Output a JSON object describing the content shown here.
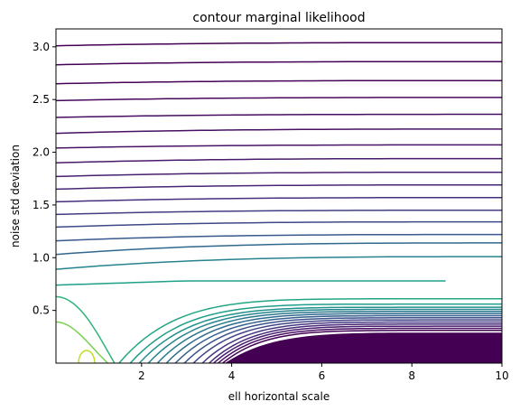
{
  "chart_data": {
    "type": "contour",
    "title": "contour marginal likelihood",
    "xlabel": "ell horizontal scale",
    "ylabel": "noise std deviation",
    "xlim": [
      0.1,
      10
    ],
    "ylim": [
      0.0,
      3.17
    ],
    "x_ticks": [
      {
        "value": 2,
        "label": "2"
      },
      {
        "value": 4,
        "label": "4"
      },
      {
        "value": 6,
        "label": "6"
      },
      {
        "value": 8,
        "label": "8"
      },
      {
        "value": 10,
        "label": "10"
      }
    ],
    "y_ticks": [
      {
        "value": 0.5,
        "label": "0.5"
      },
      {
        "value": 1.0,
        "label": "1.0"
      },
      {
        "value": 1.5,
        "label": "1.5"
      },
      {
        "value": 2.0,
        "label": "2.0"
      },
      {
        "value": 2.5,
        "label": "2.5"
      },
      {
        "value": 3.0,
        "label": "3.0"
      }
    ],
    "colormap": "viridis",
    "grid": false,
    "legend": false,
    "horizontal_contours": [
      {
        "y_left": 3.01,
        "y_right": 3.04,
        "color": "#440154"
      },
      {
        "y_left": 2.83,
        "y_right": 2.86,
        "color": "#440154"
      },
      {
        "y_left": 2.65,
        "y_right": 2.68,
        "color": "#450457"
      },
      {
        "y_left": 2.49,
        "y_right": 2.52,
        "color": "#46085c"
      },
      {
        "y_left": 2.33,
        "y_right": 2.36,
        "color": "#470d60"
      },
      {
        "y_left": 2.18,
        "y_right": 2.22,
        "color": "#471063"
      },
      {
        "y_left": 2.04,
        "y_right": 2.07,
        "color": "#481467"
      },
      {
        "y_left": 1.9,
        "y_right": 1.94,
        "color": "#481a6c"
      },
      {
        "y_left": 1.77,
        "y_right": 1.81,
        "color": "#482071"
      },
      {
        "y_left": 1.65,
        "y_right": 1.69,
        "color": "#472575"
      },
      {
        "y_left": 1.53,
        "y_right": 1.57,
        "color": "#46307e"
      },
      {
        "y_left": 1.41,
        "y_right": 1.45,
        "color": "#433d84"
      },
      {
        "y_left": 1.29,
        "y_right": 1.34,
        "color": "#3e4989"
      },
      {
        "y_left": 1.16,
        "y_right": 1.22,
        "color": "#38598c"
      },
      {
        "y_left": 1.03,
        "y_right": 1.14,
        "color": "#31688e"
      },
      {
        "y_left": 0.89,
        "y_right": 1.01,
        "color": "#26828e"
      }
    ],
    "green_contour": {
      "y_left": 0.74,
      "plateau": 0.78,
      "x_end": 8.75,
      "color": "#1fa187"
    },
    "valley_contours": [
      {
        "x_bottom": 1.5,
        "y_right": 0.61,
        "color": "#22a785"
      },
      {
        "x_bottom": 1.75,
        "y_right": 0.56,
        "color": "#1f9e89"
      },
      {
        "x_bottom": 1.95,
        "y_right": 0.53,
        "color": "#21918c"
      },
      {
        "x_bottom": 2.15,
        "y_right": 0.51,
        "color": "#25848e"
      },
      {
        "x_bottom": 2.35,
        "y_right": 0.49,
        "color": "#2a788e"
      },
      {
        "x_bottom": 2.55,
        "y_right": 0.47,
        "color": "#2f6b8e"
      },
      {
        "x_bottom": 2.75,
        "y_right": 0.45,
        "color": "#355f8d"
      },
      {
        "x_bottom": 2.95,
        "y_right": 0.43,
        "color": "#3b528b"
      },
      {
        "x_bottom": 3.15,
        "y_right": 0.41,
        "color": "#414487"
      },
      {
        "x_bottom": 3.35,
        "y_right": 0.39,
        "color": "#453781"
      },
      {
        "x_bottom": 3.5,
        "y_right": 0.37,
        "color": "#472a7a"
      },
      {
        "x_bottom": 3.6,
        "y_right": 0.35,
        "color": "#481c6e"
      },
      {
        "x_bottom": 3.7,
        "y_right": 0.33,
        "color": "#470f62"
      },
      {
        "x_bottom": 3.8,
        "y_right": 0.31,
        "color": "#440154"
      }
    ],
    "filled_region": {
      "x_start": 3.85,
      "y_top": 0.29,
      "color": "#440154"
    },
    "left_contours": [
      {
        "type": "open",
        "x_max": 0.95,
        "y_top": 0.63,
        "y_bottom_right": 0.0,
        "x_bottom": 1.4,
        "color": "#2fb47c"
      },
      {
        "type": "open",
        "x_max": 0.75,
        "y_top": 0.39,
        "x_bottom": 1.25,
        "color": "#7ad151"
      },
      {
        "type": "dome",
        "x_center": 0.78,
        "half_width": 0.18,
        "height": 0.12,
        "color": "#bddf26"
      }
    ]
  }
}
